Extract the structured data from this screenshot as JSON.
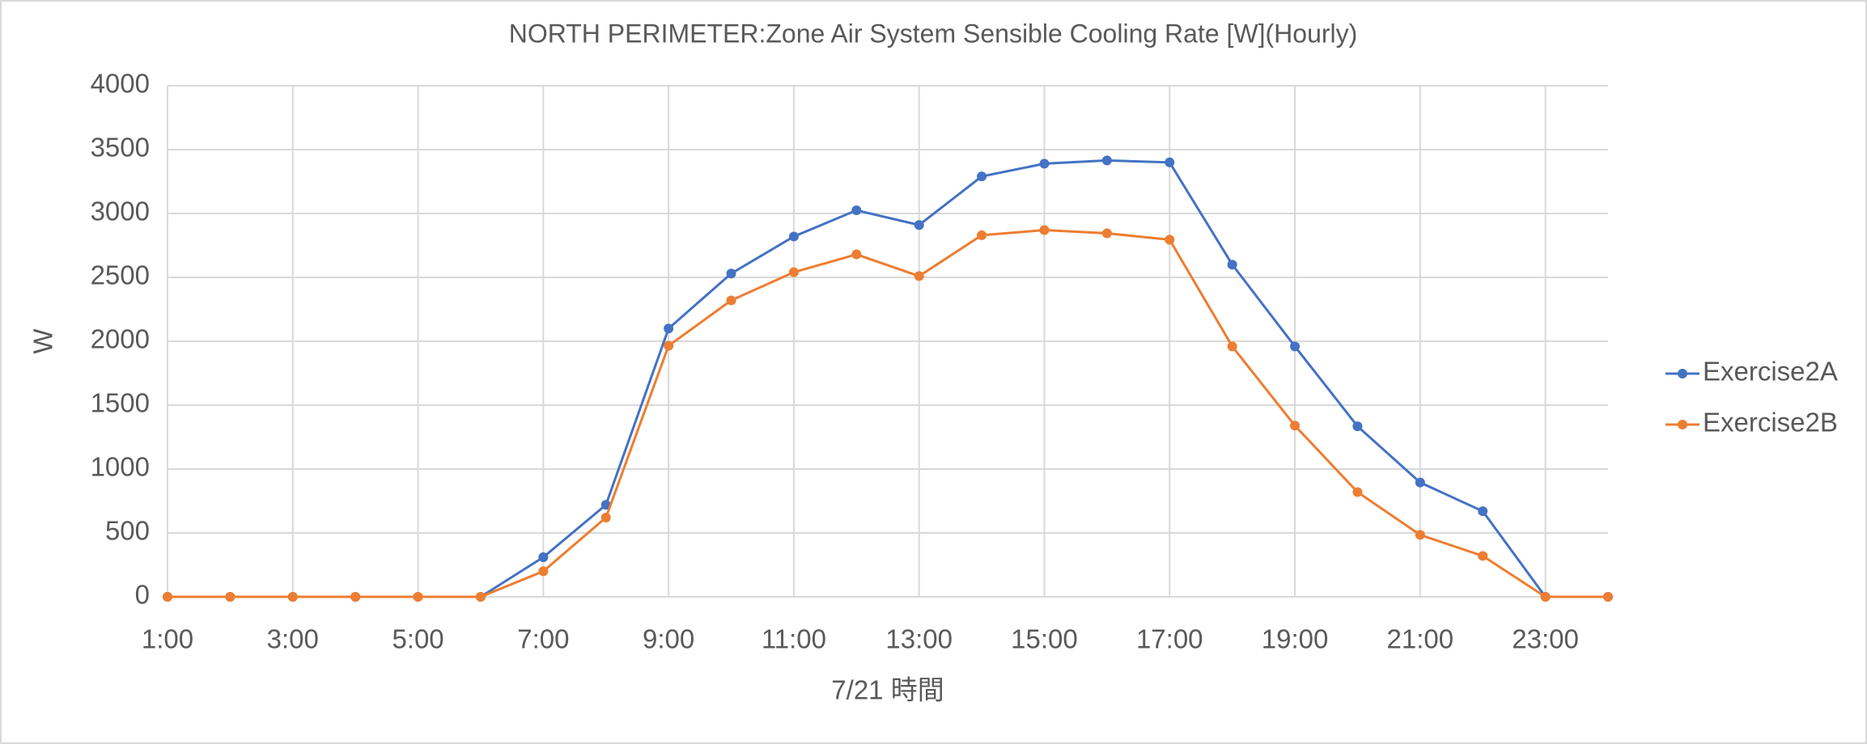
{
  "chart_data": {
    "type": "line",
    "title": "NORTH PERIMETER:Zone Air System Sensible Cooling Rate [W](Hourly)",
    "x_label": "7/21 時間",
    "y_label": "W",
    "categories": [
      "1:00",
      null,
      "3:00",
      null,
      "5:00",
      null,
      "7:00",
      null,
      "9:00",
      null,
      "11:00",
      null,
      "13:00",
      null,
      "15:00",
      null,
      "17:00",
      null,
      "19:00",
      null,
      "21:00",
      null,
      "23:00",
      null
    ],
    "series": [
      {
        "name": "Exercise2A",
        "color": "#4472c4",
        "values": [
          0,
          0,
          0,
          0,
          0,
          0,
          310,
          720,
          2100,
          2530,
          2820,
          3025,
          2910,
          3290,
          3390,
          3415,
          3400,
          2600,
          1960,
          1335,
          895,
          670,
          0,
          0
        ]
      },
      {
        "name": "Exercise2B",
        "color": "#ed7d31",
        "values": [
          0,
          0,
          0,
          0,
          0,
          0,
          200,
          620,
          1965,
          2320,
          2540,
          2680,
          2510,
          2830,
          2870,
          2845,
          2795,
          1960,
          1340,
          820,
          485,
          320,
          0,
          0
        ]
      }
    ],
    "ylim": [
      0,
      4000
    ],
    "yticks": [
      0,
      500,
      1000,
      1500,
      2000,
      2500,
      3000,
      3500,
      4000
    ],
    "grid": true,
    "legend": "right"
  }
}
